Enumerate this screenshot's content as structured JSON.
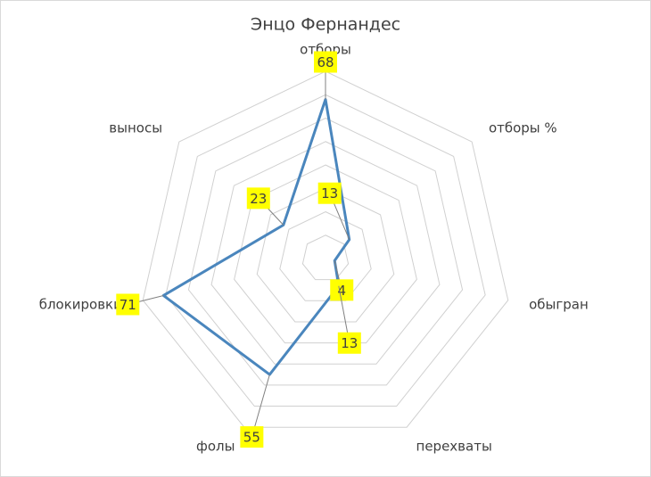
{
  "chart_data": {
    "type": "radar",
    "title": "Энцо Фернандес",
    "categories": [
      "отборы",
      "отборы %",
      "обыгран",
      "перехваты",
      "фолы",
      "блокировки",
      "выносы"
    ],
    "series": [
      {
        "name": "Энцо Фернандес",
        "color": "#4a86bd",
        "values": [
          68,
          13,
          4,
          13,
          55,
          71,
          23
        ]
      }
    ],
    "ylim": [
      0,
      80
    ],
    "yticks": [
      0,
      10,
      20,
      30,
      40,
      50,
      60,
      70,
      80
    ],
    "grid": true,
    "value_label_color": "#ffff00"
  }
}
